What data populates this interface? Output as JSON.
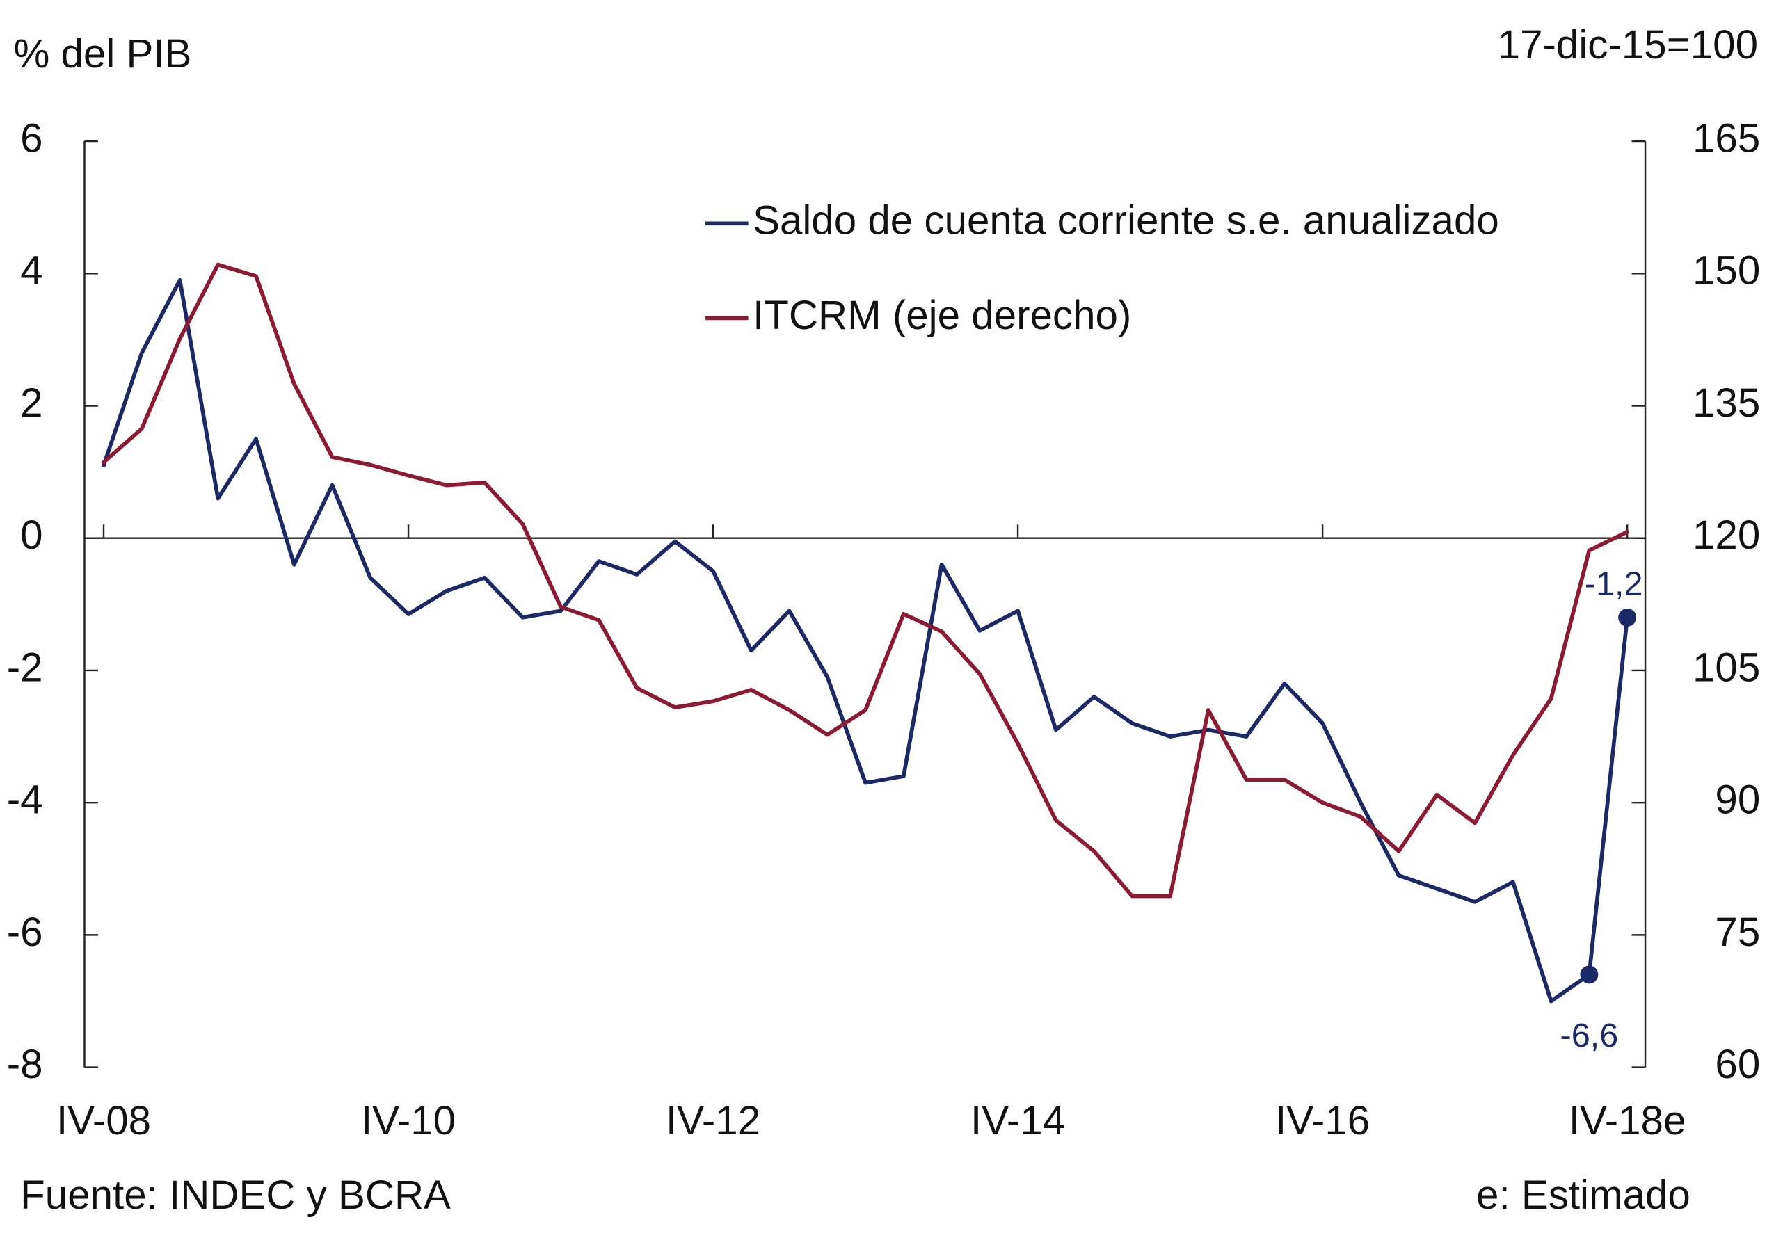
{
  "chart_data": {
    "type": "line",
    "y_label": "% del PIB",
    "y2_label": "17-dic-15=100",
    "source": "Fuente: INDEC y BCRA",
    "note": "e: Estimado",
    "categories": [
      "IV-08",
      null,
      null,
      null,
      null,
      null,
      null,
      null,
      "IV-10",
      null,
      null,
      null,
      null,
      null,
      null,
      null,
      "IV-12",
      null,
      null,
      null,
      null,
      null,
      null,
      null,
      "IV-14",
      null,
      null,
      null,
      null,
      null,
      null,
      null,
      "IV-16",
      null,
      null,
      null,
      null,
      null,
      null,
      null,
      "IV-18e"
    ],
    "ylim": [
      -8,
      6
    ],
    "yticks": [
      -8,
      -6,
      -4,
      -2,
      0,
      2,
      4,
      6
    ],
    "y2lim": [
      60,
      165
    ],
    "y2ticks": [
      60,
      75,
      90,
      105,
      120,
      135,
      150,
      165
    ],
    "series": [
      {
        "name": "Saldo de cuenta corriente s.e. anualizado",
        "color": "#1b2a66",
        "values": [
          1.1,
          2.8,
          3.9,
          0.6,
          1.5,
          -0.4,
          0.8,
          -0.6,
          -1.15,
          -0.8,
          -0.6,
          -1.2,
          -1.1,
          -0.35,
          -0.55,
          -0.05,
          -0.5,
          -1.7,
          -1.1,
          -2.1,
          -3.7,
          -3.6,
          -0.4,
          -1.4,
          -1.1,
          -2.9,
          -2.4,
          -2.8,
          -3.0,
          -2.9,
          -3.0,
          -2.2,
          -2.8,
          -4.0,
          -5.1,
          -5.3,
          -5.5,
          -5.2,
          -7.0,
          -6.6,
          -1.2
        ],
        "value_labels": [
          null,
          null,
          null,
          null,
          null,
          null,
          null,
          null,
          null,
          null,
          null,
          null,
          null,
          null,
          null,
          null,
          null,
          null,
          null,
          null,
          null,
          null,
          null,
          null,
          null,
          null,
          null,
          null,
          null,
          null,
          null,
          null,
          null,
          null,
          null,
          null,
          null,
          null,
          null,
          "-6,6",
          "-1,2"
        ]
      },
      {
        "name": "ITCRM (eje derecho)",
        "color": "#8b1a32",
        "axis": "y2",
        "values": [
          128.6,
          132.4,
          142.6,
          151.0,
          149.7,
          137.5,
          129.2,
          128.3,
          127.1,
          126.0,
          126.3,
          121.6,
          112.2,
          110.7,
          103.0,
          100.8,
          101.5,
          102.8,
          100.5,
          97.7,
          100.5,
          111.4,
          109.4,
          104.6,
          96.7,
          88.0,
          84.5,
          79.4,
          79.4,
          100.5,
          92.6,
          92.6,
          90.0,
          88.4,
          84.5,
          90.9,
          87.7,
          95.4,
          101.8,
          118.6,
          120.7
        ]
      }
    ]
  }
}
